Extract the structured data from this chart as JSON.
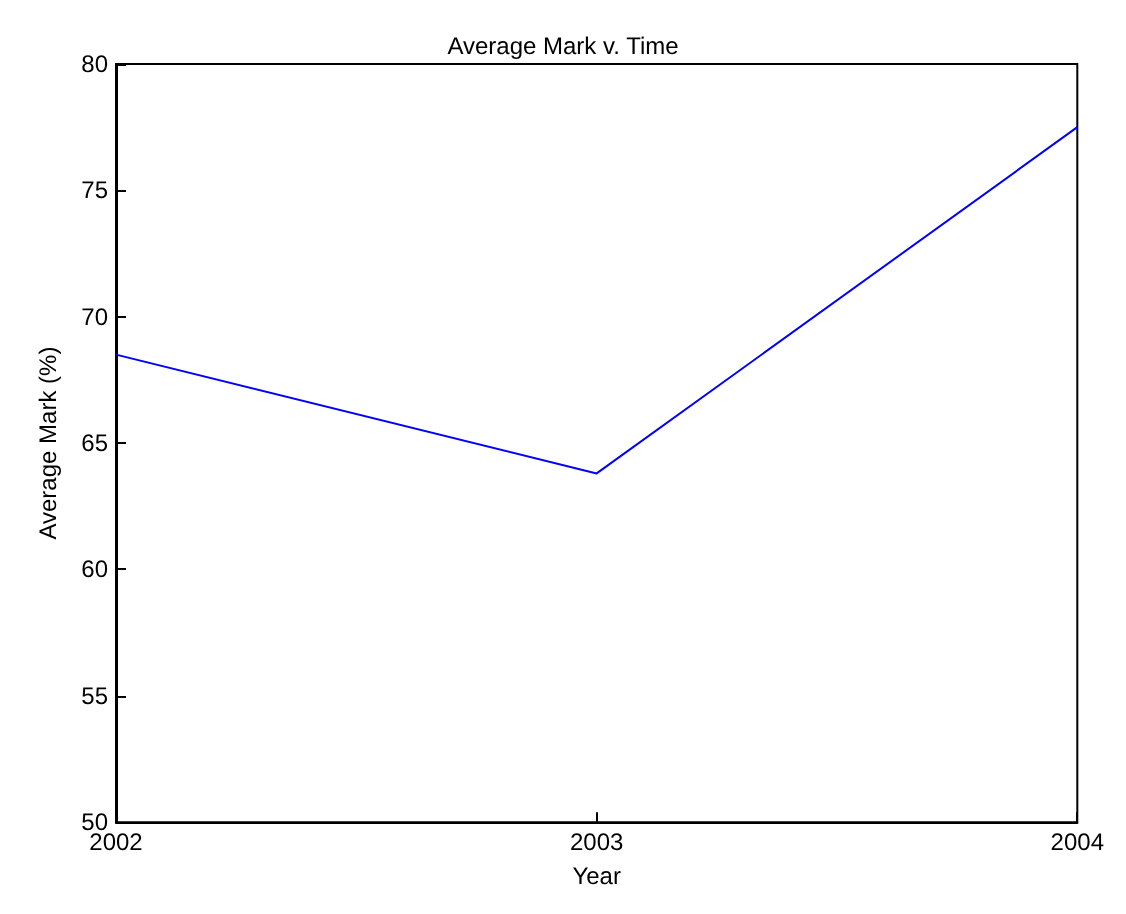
{
  "chart_data": {
    "type": "line",
    "title": "Average Mark v. Time",
    "xlabel": "Year",
    "ylabel": "Average Mark (%)",
    "x": [
      2002,
      2003,
      2004
    ],
    "series": [
      {
        "color": "#0000ff",
        "values": [
          68.5,
          63.8,
          77.5
        ]
      }
    ],
    "xlim": [
      2002,
      2004
    ],
    "xticks": [
      2002,
      2003,
      2004
    ],
    "ylim": [
      50,
      80
    ],
    "yticks": [
      50,
      55,
      60,
      65,
      70,
      75,
      80
    ],
    "grid": false,
    "marker": "none",
    "line_style": "solid"
  }
}
